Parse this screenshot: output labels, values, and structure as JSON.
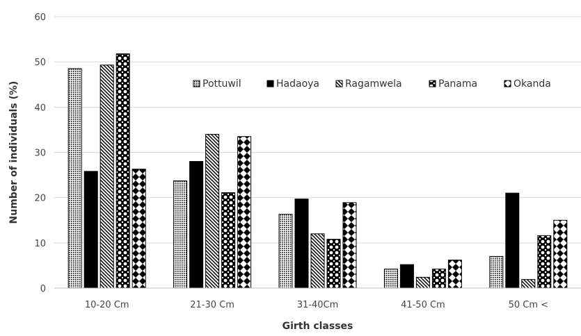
{
  "chart_data": {
    "type": "bar",
    "title": "",
    "xlabel": "Girth classes",
    "ylabel": "Number of individuals  (%)",
    "ylim": [
      0,
      60
    ],
    "yticks": [
      0,
      10,
      20,
      30,
      40,
      50,
      60
    ],
    "grid": true,
    "legend_position": "top-right",
    "categories": [
      "10-20 Cm",
      "21-30 Cm",
      "31-40Cm",
      "41-50 Cm",
      "50 Cm <"
    ],
    "series": [
      {
        "name": "Pottuwil",
        "pattern": "dots",
        "values": [
          48.5,
          23.7,
          16.3,
          4.2,
          7.0
        ]
      },
      {
        "name": "Hadaoya",
        "pattern": "solid",
        "values": [
          25.8,
          28.0,
          19.7,
          5.2,
          21.0
        ]
      },
      {
        "name": "Ragamwela",
        "pattern": "diagonal",
        "values": [
          49.3,
          34.0,
          12.0,
          2.4,
          1.9
        ]
      },
      {
        "name": "Panama",
        "pattern": "circles",
        "values": [
          51.8,
          21.1,
          10.8,
          4.2,
          11.6
        ]
      },
      {
        "name": "Okanda",
        "pattern": "diamonds",
        "values": [
          26.3,
          33.5,
          18.9,
          6.2,
          15.0
        ]
      }
    ]
  }
}
